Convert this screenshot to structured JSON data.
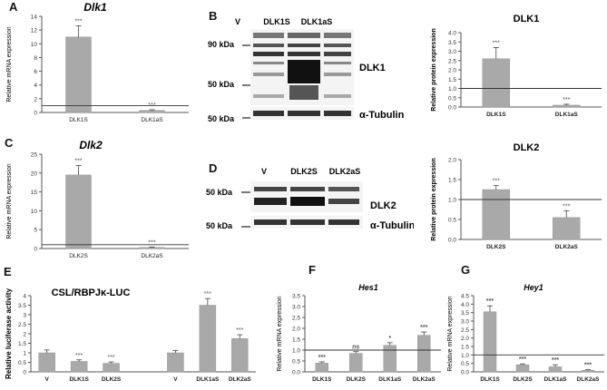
{
  "panels": {
    "A": {
      "letter": "A"
    },
    "B": {
      "letter": "B"
    },
    "C": {
      "letter": "C"
    },
    "D": {
      "letter": "D"
    },
    "E": {
      "letter": "E"
    },
    "F": {
      "letter": "F"
    },
    "G": {
      "letter": "G"
    }
  },
  "blotB": {
    "lanes": [
      "V",
      "DLK1S",
      "DLK1aS"
    ],
    "markers": [
      "90 kDa",
      "50 kDa",
      "50 kDa"
    ],
    "protein": "DLK1",
    "loading": "α-Tubulin"
  },
  "blotD": {
    "lanes": [
      "V",
      "DLK2S",
      "DLK2aS"
    ],
    "markers": [
      "50 kDa",
      "50 kDa"
    ],
    "protein": "DLK2",
    "loading": "α-Tubulin"
  },
  "colors": {
    "bar": "#a9a9a9",
    "axis": "#555555",
    "refline": "#333333"
  },
  "chart_data": [
    {
      "id": "A",
      "type": "bar",
      "title": "Dlk1",
      "ylabel": "Relative mRNA expression",
      "categories": [
        "DLK1S",
        "DLK1aS"
      ],
      "values": [
        11.0,
        0.3
      ],
      "errors": [
        1.6,
        0.1
      ],
      "sig": [
        "***",
        "***"
      ],
      "ylim": [
        0,
        14
      ],
      "yticks": [
        "0",
        "2",
        "4",
        "6",
        "8",
        "10",
        "12",
        "14"
      ],
      "refline": 1
    },
    {
      "id": "B",
      "type": "bar",
      "title": "DLK1",
      "ylabel": "Relative protein expression",
      "categories": [
        "DLK1S",
        "DLK1aS"
      ],
      "values": [
        2.6,
        0.1
      ],
      "errors": [
        0.6,
        0.05
      ],
      "sig": [
        "***",
        "***"
      ],
      "ylim": [
        0,
        4
      ],
      "yticks": [
        "0.0",
        "0.5",
        "1.0",
        "1.5",
        "2.0",
        "2.5",
        "3.0",
        "3.5",
        "4.0"
      ],
      "refline": 1
    },
    {
      "id": "C",
      "type": "bar",
      "title": "Dlk2",
      "ylabel": "Relative mRNA expression",
      "categories": [
        "DLK2S",
        "DLK2aS"
      ],
      "values": [
        19.5,
        0.3
      ],
      "errors": [
        2.5,
        0.1
      ],
      "sig": [
        "***",
        "***"
      ],
      "ylim": [
        0,
        25
      ],
      "yticks": [
        "0",
        "5",
        "10",
        "15",
        "20",
        "25"
      ],
      "refline": 1
    },
    {
      "id": "D",
      "type": "bar",
      "title": "DLK2",
      "ylabel": "Relative protein expression",
      "categories": [
        "DLK2S",
        "DLK2aS"
      ],
      "values": [
        1.25,
        0.55
      ],
      "errors": [
        0.1,
        0.17
      ],
      "sig": [
        "***",
        "***"
      ],
      "ylim": [
        0,
        2
      ],
      "yticks": [
        "0.0",
        "0.5",
        "1.0",
        "1.5",
        "2.0"
      ],
      "refline": 1
    },
    {
      "id": "E",
      "type": "bar",
      "title": "CSL/RBPJκ-LUC",
      "ylabel": "Relative luciferase activity",
      "categories": [
        "V",
        "DLK1S",
        "DLK2S",
        "V",
        "DLK1aS",
        "DLK2aS"
      ],
      "values": [
        1.0,
        0.55,
        0.45,
        1.0,
        3.5,
        1.75
      ],
      "errors": [
        0.15,
        0.08,
        0.07,
        0.12,
        0.35,
        0.2
      ],
      "sig": [
        "",
        "***",
        "***",
        "",
        "***",
        "***"
      ],
      "ylim": [
        0,
        4
      ],
      "yticks": [
        "0",
        "0.5",
        "1",
        "1.5",
        "2",
        "2.5",
        "3",
        "3.5",
        "4"
      ],
      "refline": null
    },
    {
      "id": "F",
      "type": "bar",
      "title": "Hes1",
      "ylabel": "Relative mRNA expression",
      "categories": [
        "DLK1S",
        "DLK2S",
        "DLK1aS",
        "DLK2aS"
      ],
      "values": [
        0.4,
        0.85,
        1.22,
        1.68
      ],
      "errors": [
        0.06,
        0.08,
        0.12,
        0.15
      ],
      "sig": [
        "***",
        "ns",
        "*",
        "***"
      ],
      "ylim": [
        0,
        3.5
      ],
      "yticks": [
        "0.0",
        "0.5",
        "1.0",
        "1.5",
        "2.0",
        "2.5",
        "3.0",
        "3.5"
      ],
      "refline": 1
    },
    {
      "id": "G",
      "type": "bar",
      "title": "Hey1",
      "ylabel": "Relative mRNA expression",
      "categories": [
        "DLK1S",
        "DLK2S",
        "DLK1aS",
        "DLK2aS"
      ],
      "values": [
        3.55,
        0.42,
        0.3,
        0.1
      ],
      "errors": [
        0.35,
        0.05,
        0.12,
        0.03
      ],
      "sig": [
        "***",
        "***",
        "***",
        "***"
      ],
      "ylim": [
        0,
        4.5
      ],
      "yticks": [
        "0.0",
        "0.5",
        "1.0",
        "1.5",
        "2.0",
        "2.5",
        "3.0",
        "3.5",
        "4.0",
        "4.5"
      ],
      "refline": 1
    }
  ]
}
